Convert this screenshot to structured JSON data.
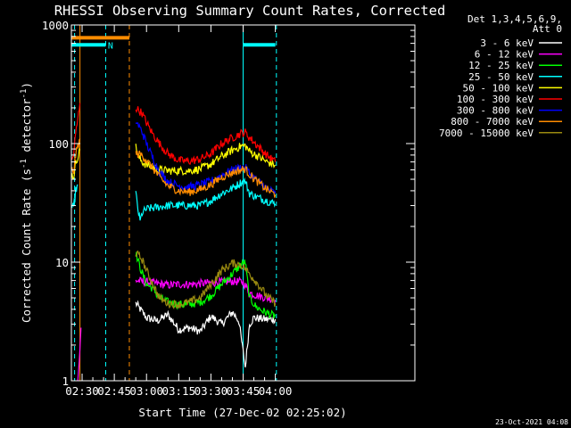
{
  "chart_data": {
    "type": "line",
    "title": "RHESSI Observing Summary Count Rates, Corrected",
    "xlabel": "Start Time (27-Dec-02 02:25:02)",
    "ylabel_main": "Corrected Count Rate (s",
    "ylabel_sup1": "-1",
    "ylabel_mid": " detector",
    "ylabel_sup2": "-1",
    "ylabel_end": ")",
    "yscale": "log",
    "xlim": [
      25,
      185
    ],
    "ylim": [
      1,
      1000
    ],
    "x_ticks": [
      {
        "value": 30,
        "label": "02:30"
      },
      {
        "value": 45,
        "label": "02:45"
      },
      {
        "value": 60,
        "label": "03:00"
      },
      {
        "value": 75,
        "label": "03:15"
      },
      {
        "value": 90,
        "label": "03:30"
      },
      {
        "value": 105,
        "label": "03:45"
      },
      {
        "value": 120,
        "label": "04:00"
      }
    ],
    "y_ticks": [
      {
        "value": 1,
        "label": "1"
      },
      {
        "value": 10,
        "label": "10"
      },
      {
        "value": 100,
        "label": "100"
      },
      {
        "value": 1000,
        "label": "1000"
      }
    ],
    "legend_header": [
      "Det 1,3,4,5,6,9,",
      "Att 0"
    ],
    "legend_position": "right",
    "attenuator_bars": [
      {
        "x_start": 25,
        "x_end": 52,
        "value": 780,
        "color": "#ff8c00"
      },
      {
        "x_start": 25,
        "x_end": 41,
        "value": 680,
        "color": "#00ffff"
      },
      {
        "x_start": 105,
        "x_end": 120,
        "value": 680,
        "color": "#00ffff"
      }
    ],
    "bar_annotation": {
      "text": "N",
      "x": 42,
      "color": "#00ffff"
    },
    "vertical_markers": [
      {
        "x": 26.5,
        "color": "#00ffff",
        "style": "dashed"
      },
      {
        "x": 29,
        "color": "#ff8c00",
        "style": "solid"
      },
      {
        "x": 41,
        "color": "#00ffff",
        "style": "dashed"
      },
      {
        "x": 52,
        "color": "#ff8c00",
        "style": "dashed"
      },
      {
        "x": 105,
        "color": "#00ffff",
        "style": "solid"
      },
      {
        "x": 120.5,
        "color": "#00ffff",
        "style": "dashed"
      }
    ],
    "series": [
      {
        "name": "3 - 6 keV",
        "color": "#ffffff",
        "segments": [
          [
            [
              55,
              4.5
            ],
            [
              60,
              3.4
            ],
            [
              65,
              3.2
            ],
            [
              70,
              3.6
            ],
            [
              75,
              2.7
            ],
            [
              80,
              2.8
            ],
            [
              85,
              2.6
            ],
            [
              90,
              3.5
            ],
            [
              95,
              3.0
            ],
            [
              100,
              3.8
            ],
            [
              103,
              3.2
            ],
            [
              106,
              1.3
            ],
            [
              108,
              3.0
            ],
            [
              110,
              3.4
            ],
            [
              115,
              3.3
            ],
            [
              120,
              3.3
            ]
          ]
        ]
      },
      {
        "name": "6 - 12 keV",
        "color": "#ff00ff",
        "segments": [
          [
            [
              28,
              1
            ],
            [
              29,
              1.8
            ],
            [
              29.5,
              2.8
            ]
          ],
          [
            [
              55,
              7.0
            ],
            [
              60,
              6.8
            ],
            [
              65,
              6.6
            ],
            [
              70,
              6.4
            ],
            [
              75,
              6.5
            ],
            [
              80,
              6.5
            ],
            [
              85,
              6.6
            ],
            [
              90,
              6.7
            ],
            [
              95,
              6.8
            ],
            [
              100,
              6.9
            ],
            [
              105,
              6.8
            ],
            [
              108,
              5.5
            ],
            [
              112,
              5.2
            ],
            [
              116,
              5.0
            ],
            [
              120,
              4.8
            ]
          ]
        ]
      },
      {
        "name": "12 - 25 keV",
        "color": "#00ff00",
        "segments": [
          [
            [
              55,
              12
            ],
            [
              57,
              9
            ],
            [
              60,
              6.5
            ],
            [
              63,
              6.0
            ],
            [
              66,
              5.0
            ],
            [
              70,
              4.6
            ],
            [
              75,
              4.4
            ],
            [
              80,
              4.4
            ],
            [
              85,
              4.6
            ],
            [
              90,
              5.2
            ],
            [
              95,
              6.5
            ],
            [
              100,
              8.0
            ],
            [
              104,
              9.5
            ],
            [
              106,
              10
            ],
            [
              108,
              5
            ],
            [
              111,
              4.2
            ],
            [
              115,
              3.8
            ],
            [
              118,
              3.6
            ],
            [
              120,
              3.5
            ]
          ]
        ]
      },
      {
        "name": "25 - 50 keV",
        "color": "#00ffff",
        "segments": [
          [
            [
              25,
              30
            ],
            [
              26,
              28
            ],
            [
              27,
              40
            ],
            [
              28,
              45
            ]
          ],
          [
            [
              55,
              38
            ],
            [
              56,
              28
            ],
            [
              57,
              22
            ],
            [
              58,
              26
            ],
            [
              60,
              28
            ],
            [
              65,
              29
            ],
            [
              70,
              30
            ],
            [
              75,
              30
            ],
            [
              80,
              30
            ],
            [
              85,
              30
            ],
            [
              90,
              33
            ],
            [
              95,
              38
            ],
            [
              100,
              42
            ],
            [
              104,
              47
            ],
            [
              106,
              48
            ],
            [
              108,
              38
            ],
            [
              112,
              35
            ],
            [
              116,
              33
            ],
            [
              120,
              31
            ]
          ]
        ]
      },
      {
        "name": "50 - 100 keV",
        "color": "#ffff00",
        "segments": [
          [
            [
              25,
              55
            ],
            [
              26,
              52
            ],
            [
              27,
              68
            ],
            [
              28,
              78
            ],
            [
              29,
              88
            ]
          ],
          [
            [
              55,
              100
            ],
            [
              56,
              78
            ],
            [
              58,
              70
            ],
            [
              60,
              66
            ],
            [
              63,
              63
            ],
            [
              66,
              60
            ],
            [
              70,
              59
            ],
            [
              75,
              59
            ],
            [
              80,
              59
            ],
            [
              85,
              61
            ],
            [
              90,
              67
            ],
            [
              95,
              78
            ],
            [
              100,
              88
            ],
            [
              104,
              95
            ],
            [
              106,
              96
            ],
            [
              108,
              86
            ],
            [
              112,
              78
            ],
            [
              116,
              70
            ],
            [
              120,
              66
            ]
          ]
        ]
      },
      {
        "name": "100 - 300 keV",
        "color": "#ff0000",
        "segments": [
          [
            [
              25,
              70
            ],
            [
              26,
              80
            ],
            [
              27,
              120
            ],
            [
              28,
              160
            ],
            [
              29,
              220
            ]
          ],
          [
            [
              55,
              200
            ],
            [
              58,
              180
            ],
            [
              60,
              150
            ],
            [
              63,
              120
            ],
            [
              66,
              100
            ],
            [
              70,
              82
            ],
            [
              75,
              72
            ],
            [
              80,
              71
            ],
            [
              85,
              74
            ],
            [
              90,
              82
            ],
            [
              95,
              100
            ],
            [
              100,
              112
            ],
            [
              104,
              122
            ],
            [
              106,
              124
            ],
            [
              108,
              112
            ],
            [
              112,
              95
            ],
            [
              116,
              80
            ],
            [
              120,
              70
            ]
          ]
        ]
      },
      {
        "name": "300 - 800 keV",
        "color": "#0000ff",
        "segments": [
          [
            [
              55,
              155
            ],
            [
              58,
              125
            ],
            [
              60,
              100
            ],
            [
              63,
              75
            ],
            [
              66,
              58
            ],
            [
              70,
              48
            ],
            [
              75,
              44
            ],
            [
              80,
              43
            ],
            [
              85,
              45
            ],
            [
              90,
              48
            ],
            [
              95,
              54
            ],
            [
              100,
              60
            ],
            [
              104,
              63
            ],
            [
              106,
              63
            ],
            [
              108,
              56
            ],
            [
              112,
              48
            ],
            [
              116,
              42
            ],
            [
              120,
              38
            ]
          ]
        ]
      },
      {
        "name": "800 - 7000 keV",
        "color": "#ff8c00",
        "segments": [
          [
            [
              25,
              60
            ],
            [
              26,
              58
            ],
            [
              27,
              80
            ],
            [
              28,
              95
            ],
            [
              29,
              110
            ]
          ],
          [
            [
              55,
              82
            ],
            [
              58,
              80
            ],
            [
              60,
              72
            ],
            [
              63,
              62
            ],
            [
              66,
              52
            ],
            [
              70,
              44
            ],
            [
              75,
              40
            ],
            [
              80,
              39
            ],
            [
              85,
              41
            ],
            [
              90,
              45
            ],
            [
              95,
              52
            ],
            [
              100,
              57
            ],
            [
              104,
              60
            ],
            [
              106,
              61
            ],
            [
              108,
              55
            ],
            [
              112,
              47
            ],
            [
              116,
              41
            ],
            [
              120,
              37
            ]
          ]
        ]
      },
      {
        "name": "7000 - 15000 keV",
        "color": "#9a8a10",
        "segments": [
          [
            [
              55,
              12
            ],
            [
              58,
              10.5
            ],
            [
              60,
              8.5
            ],
            [
              63,
              6.5
            ],
            [
              66,
              5.0
            ],
            [
              70,
              4.5
            ],
            [
              75,
              4.4
            ],
            [
              80,
              4.6
            ],
            [
              85,
              5.0
            ],
            [
              90,
              6.5
            ],
            [
              95,
              8.5
            ],
            [
              100,
              9.8
            ],
            [
              104,
              9.5
            ],
            [
              106,
              8.8
            ],
            [
              108,
              8.0
            ],
            [
              112,
              6.5
            ],
            [
              116,
              5.2
            ],
            [
              120,
              4.5
            ]
          ]
        ]
      }
    ],
    "footer_date": "23-Oct-2021 04:08"
  }
}
